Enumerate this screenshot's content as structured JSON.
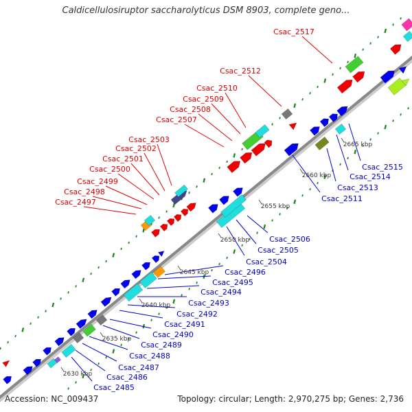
{
  "title": "Caldicellulosiruptor saccharolyticus DSM 8903, complete geno...",
  "footer": {
    "accession": "Accession: NC_009437",
    "summary": "Topology: circular; Length: 2,970,275 bp; Genes: 2,736"
  },
  "colors": {
    "backbone": "#888888",
    "upper_label": "#dd0000",
    "lower_label": "#0000cc",
    "tick": "#228822"
  },
  "scale_labels": [
    "2630 kbp",
    "2635 kbp",
    "2640 kbp",
    "2645 kbp",
    "2650 kbp",
    "2655 kbp",
    "2660 kbp",
    "2665 kbp"
  ],
  "upper_genes": [
    "Csac_2497",
    "Csac_2498",
    "Csac_2499",
    "Csac_2500",
    "Csac_2501",
    "Csac_2502",
    "Csac_2503",
    "Csac_2507",
    "Csac_2508",
    "Csac_2509",
    "Csac_2510",
    "Csac_2512",
    "Csac_2517"
  ],
  "lower_genes": [
    "Csac_2485",
    "Csac_2486",
    "Csac_2487",
    "Csac_2488",
    "Csac_2489",
    "Csac_2490",
    "Csac_2491",
    "Csac_2492",
    "Csac_2493",
    "Csac_2494",
    "Csac_2495",
    "Csac_2496",
    "Csac_2504",
    "Csac_2505",
    "Csac_2506",
    "Csac_2511",
    "Csac_2513",
    "Csac_2514",
    "Csac_2515"
  ]
}
